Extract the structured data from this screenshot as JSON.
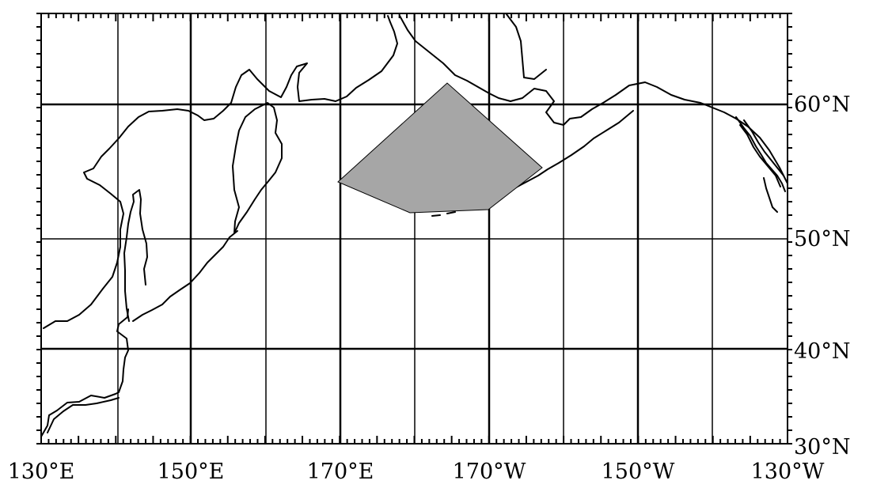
{
  "map": {
    "projection": "equirectangular",
    "lon_range": [
      "130°E",
      "130°W"
    ],
    "lat_range": [
      "30°N",
      "66°N"
    ],
    "region_fill_color": "#a6a6a6",
    "coastline_color": "#000000",
    "x_tick_labels": [
      "130°E",
      "150°E",
      "170°E",
      "170°W",
      "150°W",
      "130°W"
    ],
    "y_tick_labels": [
      "60°N",
      "50°N",
      "40°N",
      "30°N"
    ]
  }
}
